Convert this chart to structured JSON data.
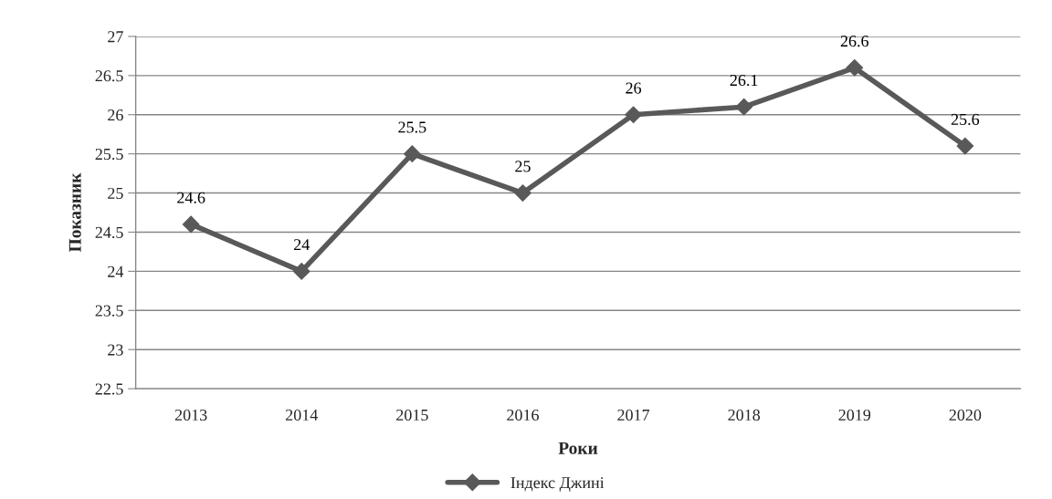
{
  "chart_data": {
    "type": "line",
    "xlabel": "Роки",
    "ylabel": "Показник",
    "categories": [
      "2013",
      "2014",
      "2015",
      "2016",
      "2017",
      "2018",
      "2019",
      "2020"
    ],
    "series": [
      {
        "name": "Індекс Джині",
        "color": "#595959",
        "values": [
          24.6,
          24,
          25.5,
          25,
          26,
          26.1,
          26.6,
          25.6
        ]
      }
    ],
    "ylim": [
      22.5,
      27
    ],
    "yticks": [
      22.5,
      23,
      23.5,
      24,
      24.5,
      25,
      25.5,
      26,
      26.5,
      27
    ],
    "grid": "y",
    "legend": "bottom",
    "marker": "diamond",
    "line_style": "solid",
    "data_labels": true
  }
}
